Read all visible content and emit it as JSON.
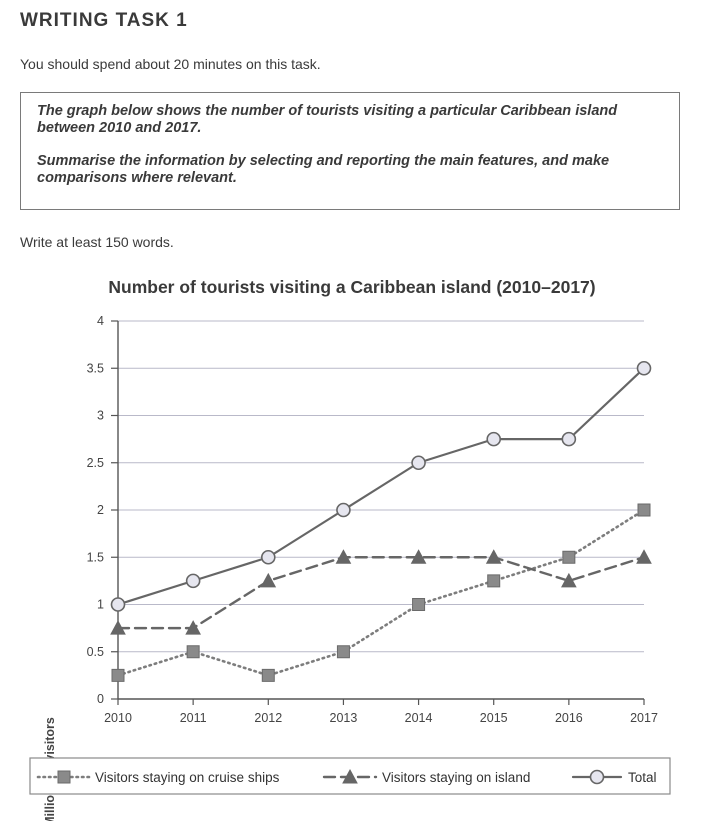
{
  "page": {
    "heading": "WRITING TASK 1",
    "instruction": "You should spend about 20 minutes on this task.",
    "task_paragraph_1": "The graph below shows the number of tourists visiting a particular Caribbean island between 2010 and 2017.",
    "task_paragraph_2": "Summarise the information by selecting and reporting the main features, and make comparisons where relevant.",
    "word_count": "Write at least 150 words."
  },
  "chart_data": {
    "type": "line",
    "title": "Number of tourists visiting a Caribbean island (2010–2017)",
    "xlabel": "",
    "ylabel": "Millions of visitors",
    "categories": [
      "2010",
      "2011",
      "2012",
      "2013",
      "2014",
      "2015",
      "2016",
      "2017"
    ],
    "ylim": [
      0,
      4
    ],
    "yticks": [
      "0",
      "0.5",
      "1",
      "1.5",
      "2",
      "2.5",
      "3",
      "3.5",
      "4"
    ],
    "grid": true,
    "legend_position": "bottom",
    "series": [
      {
        "name": "Visitors staying on cruise ships",
        "values": [
          0.25,
          0.5,
          0.25,
          0.5,
          1.0,
          1.25,
          1.5,
          2.0
        ],
        "line_style": "dotted",
        "marker": "square",
        "color": "#7d7d7d"
      },
      {
        "name": "Visitors staying on island",
        "values": [
          0.75,
          0.75,
          1.25,
          1.5,
          1.5,
          1.5,
          1.25,
          1.5
        ],
        "line_style": "dashed",
        "marker": "triangle",
        "color": "#666666"
      },
      {
        "name": "Total",
        "values": [
          1.0,
          1.25,
          1.5,
          2.0,
          2.5,
          2.75,
          2.75,
          3.5
        ],
        "line_style": "solid",
        "marker": "circle",
        "color": "#666666"
      }
    ]
  }
}
